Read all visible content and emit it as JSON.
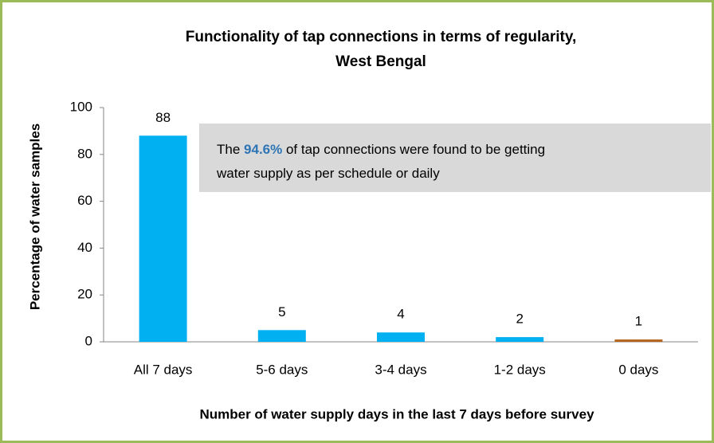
{
  "chart_data": {
    "type": "bar",
    "title_lines": [
      "Functionality of tap connections in terms of regularity,",
      "West Bengal"
    ],
    "x_label": "Number of water supply days in the last 7 days before survey",
    "y_label": "Percentage of water samples",
    "categories": [
      "All 7 days",
      "5-6 days",
      "3-4 days",
      "1-2 days",
      "0 days"
    ],
    "values": [
      88,
      5,
      4,
      2,
      1
    ],
    "colors": [
      "#00b0f0",
      "#00b0f0",
      "#00b0f0",
      "#00b0f0",
      "#b5651d"
    ],
    "ylim": [
      0,
      100
    ],
    "yticks": [
      0,
      20,
      40,
      60,
      80,
      100
    ],
    "grid": false,
    "annotation": {
      "lines": [
        [
          {
            "text": "The "
          },
          {
            "text": "94.6%",
            "color": "#2e75b6",
            "bold": true
          },
          {
            "text": " of tap connections were found to be getting"
          }
        ],
        [
          {
            "text": "water supply as per schedule or daily"
          }
        ]
      ]
    }
  }
}
